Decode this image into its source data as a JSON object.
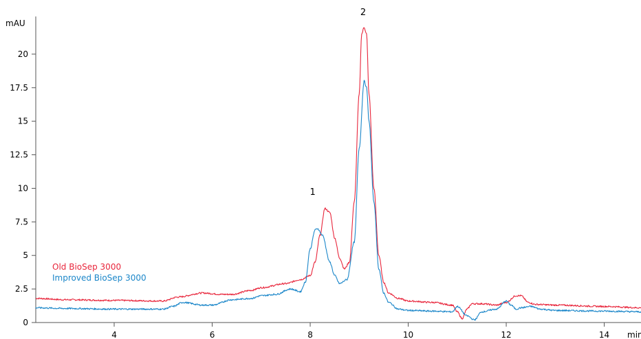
{
  "chart_data": {
    "type": "line",
    "y_unit": "mAU",
    "x_unit": "min",
    "xlim": [
      2.4,
      14.75
    ],
    "ylim": [
      0,
      22.5
    ],
    "x_ticks": [
      4,
      6,
      8,
      10,
      12,
      14
    ],
    "y_ticks": [
      0,
      2.5,
      5,
      7.5,
      10,
      12.5,
      15,
      17.5,
      20
    ],
    "x_tick_labels": [
      "4",
      "6",
      "8",
      "10",
      "12",
      "14"
    ],
    "y_tick_labels": [
      "0",
      "2.5",
      "5",
      "7.5",
      "10",
      "12.5",
      "15",
      "17.5",
      "20"
    ],
    "grid": false,
    "legend_position": "left",
    "series": [
      {
        "name": "Old BioSep 3000",
        "color": "#e8253b",
        "x": [
          2.4,
          3.0,
          4.0,
          5.0,
          5.3,
          5.8,
          6.2,
          6.4,
          6.8,
          7.0,
          7.5,
          7.8,
          8.0,
          8.1,
          8.2,
          8.3,
          8.4,
          8.5,
          8.6,
          8.7,
          8.8,
          8.9,
          9.0,
          9.05,
          9.1,
          9.15,
          9.2,
          9.3,
          9.4,
          9.5,
          9.6,
          9.8,
          10.0,
          10.5,
          10.9,
          11.0,
          11.1,
          11.2,
          11.3,
          11.5,
          11.8,
          12.0,
          12.2,
          12.3,
          12.45,
          12.6,
          13.0,
          14.0,
          14.75
        ],
        "y": [
          1.8,
          1.7,
          1.65,
          1.6,
          1.9,
          2.2,
          2.1,
          2.1,
          2.4,
          2.6,
          2.9,
          3.2,
          3.5,
          4.5,
          6.5,
          8.5,
          8.2,
          6.3,
          4.8,
          4.0,
          4.5,
          9.0,
          17.0,
          21.5,
          22.0,
          21.5,
          17.0,
          10.0,
          5.0,
          3.0,
          2.2,
          1.8,
          1.6,
          1.5,
          1.3,
          0.8,
          0.3,
          1.0,
          1.4,
          1.4,
          1.3,
          1.5,
          2.0,
          2.0,
          1.5,
          1.35,
          1.3,
          1.2,
          1.1
        ]
      },
      {
        "name": "Improved BioSep 3000",
        "color": "#1a86c9",
        "x": [
          2.4,
          3.0,
          4.0,
          5.0,
          5.2,
          5.4,
          5.8,
          6.0,
          6.4,
          6.8,
          7.0,
          7.3,
          7.6,
          7.8,
          7.9,
          8.0,
          8.1,
          8.15,
          8.25,
          8.4,
          8.5,
          8.6,
          8.75,
          8.9,
          9.0,
          9.1,
          9.15,
          9.2,
          9.3,
          9.4,
          9.5,
          9.6,
          9.8,
          10.0,
          10.5,
          10.9,
          11.0,
          11.2,
          11.35,
          11.5,
          11.8,
          12.0,
          12.1,
          12.2,
          12.3,
          12.5,
          12.7,
          13.0,
          14.0,
          14.75
        ],
        "y": [
          1.1,
          1.05,
          1.0,
          1.0,
          1.2,
          1.5,
          1.3,
          1.3,
          1.7,
          1.8,
          2.0,
          2.1,
          2.5,
          2.3,
          3.0,
          5.5,
          6.9,
          7.0,
          6.5,
          4.5,
          3.5,
          2.9,
          3.2,
          6.0,
          13.0,
          18.0,
          17.5,
          15.0,
          9.0,
          4.0,
          2.2,
          1.5,
          1.0,
          0.9,
          0.85,
          0.8,
          1.2,
          0.5,
          0.2,
          0.8,
          1.0,
          1.6,
          1.3,
          1.0,
          1.1,
          1.2,
          1.0,
          0.9,
          0.85,
          0.8
        ]
      }
    ],
    "annotations": [
      {
        "text": "1",
        "x": 8.05,
        "y": 9.5
      },
      {
        "text": "2",
        "x": 9.08,
        "y": 22.9
      }
    ]
  }
}
